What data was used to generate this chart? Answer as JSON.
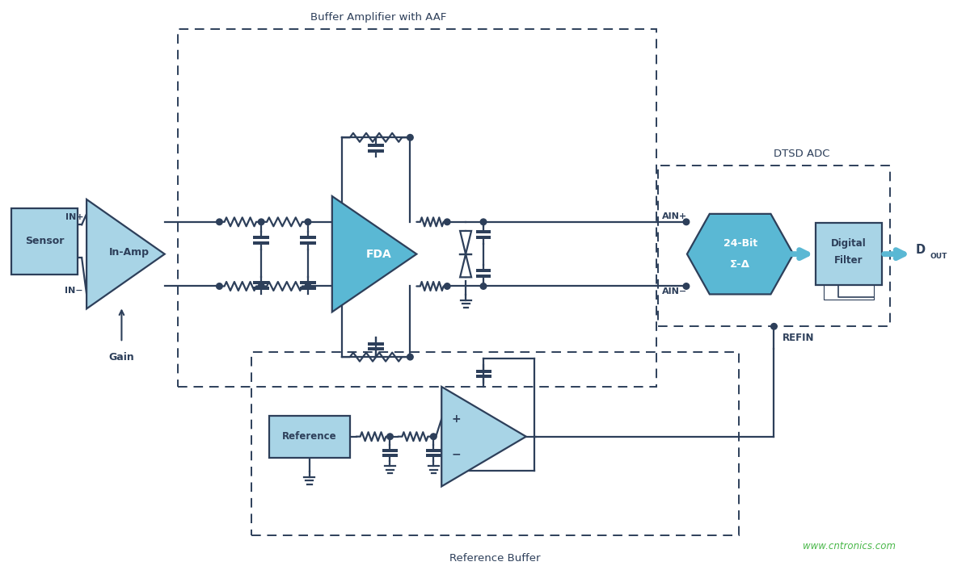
{
  "bg_color": "#ffffff",
  "line_color": "#2d3f5a",
  "fill_light_blue": "#a8d4e6",
  "fill_medium_blue": "#5ab8d4",
  "border_color": "#2d3f5a",
  "dashed_color": "#2d3f5a",
  "text_color": "#2d3f5a",
  "watermark_color": "#4ab84a",
  "watermark": "www.cntronics.com",
  "labels": {
    "sensor": "Sensor",
    "inamp": "In-Amp",
    "fda": "FDA",
    "adc_line1": "24-Bit",
    "adc_line2": "Σ-Δ",
    "filter_line1": "Digital",
    "filter_line2": "Filter",
    "reference": "Reference",
    "buffer_label": "Buffer Amplifier with AAF",
    "dtsd_label": "DTSD ADC",
    "ref_buffer_label": "Reference Buffer",
    "gain": "Gain",
    "inp": "IN+",
    "inm": "IN−",
    "ainp": "AIN+",
    "ainm": "AIN−",
    "refin": "REFIN",
    "dout": "D",
    "dout_sub": "OUT"
  }
}
